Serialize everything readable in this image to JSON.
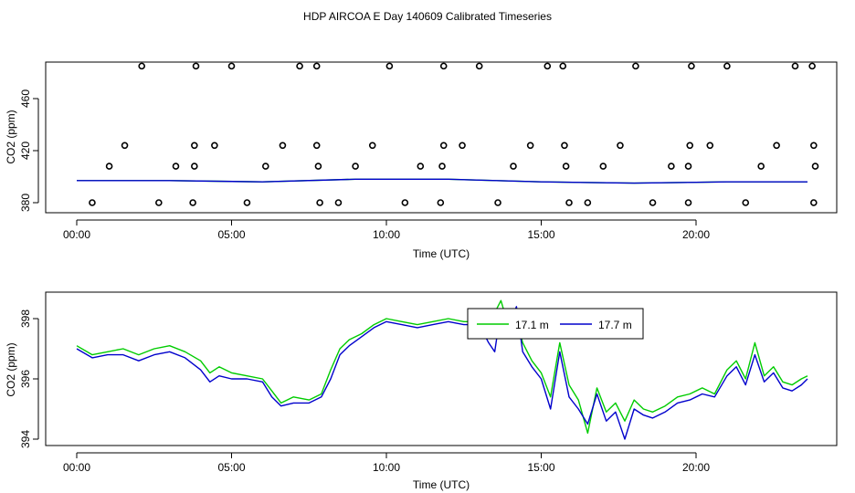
{
  "title": "HDP AIRCOA E  Day 140609  Calibrated Timeseries",
  "colors": {
    "green": "#00cc00",
    "blue": "#0000cc",
    "axis": "#000000"
  },
  "chart_data": [
    {
      "type": "scatter",
      "panel": "top",
      "xlabel": "Time (UTC)",
      "ylabel": "CO2 (ppm)",
      "xlim": [
        0,
        24
      ],
      "ylim": [
        374,
        483
      ],
      "x_ticks": [
        0,
        5,
        10,
        15,
        20
      ],
      "x_tick_labels": [
        "00:00",
        "05:00",
        "10:00",
        "15:00",
        "20:00"
      ],
      "y_ticks": [
        380,
        420,
        460
      ],
      "y_tick_labels": [
        "380",
        "420",
        "460"
      ],
      "legend": "none",
      "points": [
        {
          "x": 0.5,
          "y": 380
        },
        {
          "x": 2.65,
          "y": 380
        },
        {
          "x": 3.75,
          "y": 380
        },
        {
          "x": 5.5,
          "y": 380
        },
        {
          "x": 7.85,
          "y": 380
        },
        {
          "x": 8.45,
          "y": 380
        },
        {
          "x": 10.6,
          "y": 380
        },
        {
          "x": 11.75,
          "y": 380
        },
        {
          "x": 13.6,
          "y": 380
        },
        {
          "x": 15.9,
          "y": 380
        },
        {
          "x": 16.5,
          "y": 380
        },
        {
          "x": 18.6,
          "y": 380
        },
        {
          "x": 19.75,
          "y": 380
        },
        {
          "x": 21.6,
          "y": 380
        },
        {
          "x": 23.8,
          "y": 380
        },
        {
          "x": 1.05,
          "y": 408
        },
        {
          "x": 3.2,
          "y": 408
        },
        {
          "x": 3.8,
          "y": 408
        },
        {
          "x": 6.1,
          "y": 408
        },
        {
          "x": 7.8,
          "y": 408
        },
        {
          "x": 9.0,
          "y": 408
        },
        {
          "x": 11.1,
          "y": 408
        },
        {
          "x": 11.8,
          "y": 408
        },
        {
          "x": 14.1,
          "y": 408
        },
        {
          "x": 15.8,
          "y": 408
        },
        {
          "x": 17.0,
          "y": 408
        },
        {
          "x": 19.2,
          "y": 408
        },
        {
          "x": 19.75,
          "y": 408
        },
        {
          "x": 22.1,
          "y": 408
        },
        {
          "x": 23.85,
          "y": 408
        },
        {
          "x": 1.55,
          "y": 424
        },
        {
          "x": 3.8,
          "y": 424
        },
        {
          "x": 4.45,
          "y": 424
        },
        {
          "x": 6.65,
          "y": 424
        },
        {
          "x": 7.75,
          "y": 424
        },
        {
          "x": 9.55,
          "y": 424
        },
        {
          "x": 11.85,
          "y": 424
        },
        {
          "x": 12.45,
          "y": 424
        },
        {
          "x": 14.65,
          "y": 424
        },
        {
          "x": 15.75,
          "y": 424
        },
        {
          "x": 17.55,
          "y": 424
        },
        {
          "x": 19.8,
          "y": 424
        },
        {
          "x": 20.45,
          "y": 424
        },
        {
          "x": 22.6,
          "y": 424
        },
        {
          "x": 23.8,
          "y": 424
        },
        {
          "x": 2.1,
          "y": 485
        },
        {
          "x": 3.85,
          "y": 485
        },
        {
          "x": 5.0,
          "y": 485
        },
        {
          "x": 7.2,
          "y": 485
        },
        {
          "x": 7.75,
          "y": 485
        },
        {
          "x": 10.1,
          "y": 485
        },
        {
          "x": 11.85,
          "y": 485
        },
        {
          "x": 13.0,
          "y": 485
        },
        {
          "x": 15.2,
          "y": 485
        },
        {
          "x": 15.7,
          "y": 485
        },
        {
          "x": 18.05,
          "y": 485
        },
        {
          "x": 19.85,
          "y": 485
        },
        {
          "x": 21.0,
          "y": 485
        },
        {
          "x": 23.2,
          "y": 485
        },
        {
          "x": 23.75,
          "y": 485
        }
      ],
      "series": [
        {
          "name": "17.1 m",
          "color": "#00cc00",
          "x": [
            0,
            3,
            6,
            9,
            12,
            15,
            18,
            21,
            23.6
          ],
          "y": [
            397,
            397,
            396,
            398,
            398,
            396,
            395,
            396,
            396
          ]
        },
        {
          "name": "17.7 m",
          "color": "#0000cc",
          "x": [
            0,
            3,
            6,
            9,
            12,
            15,
            18,
            21,
            23.6
          ],
          "y": [
            397,
            397,
            396,
            398,
            398,
            396,
            395,
            396,
            396
          ]
        }
      ]
    },
    {
      "type": "line",
      "panel": "bottom",
      "xlabel": "Time (UTC)",
      "ylabel": "CO2 (ppm)",
      "xlim": [
        0,
        24
      ],
      "ylim": [
        393.8,
        398.7
      ],
      "x_ticks": [
        0,
        5,
        10,
        15,
        20
      ],
      "x_tick_labels": [
        "00:00",
        "05:00",
        "10:00",
        "15:00",
        "20:00"
      ],
      "y_ticks": [
        394,
        396,
        398
      ],
      "y_tick_labels": [
        "394",
        "396",
        "398"
      ],
      "legend": "top-center",
      "series": [
        {
          "name": "17.1 m",
          "color": "#00cc00",
          "x": [
            0,
            0.5,
            1.0,
            1.5,
            2.0,
            2.5,
            3.0,
            3.5,
            4.0,
            4.3,
            4.6,
            5.0,
            5.5,
            6.0,
            6.3,
            6.6,
            7.0,
            7.5,
            7.9,
            8.2,
            8.5,
            8.8,
            9.2,
            9.6,
            10.0,
            10.5,
            11.0,
            11.5,
            12.0,
            12.5,
            13.0,
            13.3,
            13.5,
            13.7,
            13.9,
            14.2,
            14.4,
            14.7,
            15.0,
            15.3,
            15.6,
            15.9,
            16.2,
            16.5,
            16.8,
            17.1,
            17.4,
            17.7,
            18.0,
            18.3,
            18.6,
            19.0,
            19.4,
            19.8,
            20.2,
            20.6,
            21.0,
            21.3,
            21.6,
            21.9,
            22.2,
            22.5,
            22.8,
            23.1,
            23.4,
            23.6
          ],
          "y": [
            397.1,
            396.8,
            396.9,
            397.0,
            396.8,
            397.0,
            397.1,
            396.9,
            396.6,
            396.2,
            396.4,
            396.2,
            396.1,
            396.0,
            395.6,
            395.2,
            395.4,
            395.3,
            395.5,
            396.3,
            397.0,
            397.3,
            397.5,
            397.8,
            398.0,
            397.9,
            397.8,
            397.9,
            398.0,
            397.9,
            397.9,
            397.4,
            398.2,
            398.6,
            397.9,
            398.0,
            397.2,
            396.6,
            396.2,
            395.4,
            397.2,
            395.8,
            395.3,
            394.2,
            395.7,
            394.9,
            395.2,
            394.6,
            395.3,
            395.0,
            394.9,
            395.1,
            395.4,
            395.5,
            395.7,
            395.5,
            396.3,
            396.6,
            396.0,
            397.2,
            396.1,
            396.4,
            395.9,
            395.8,
            396.0,
            396.1
          ]
        },
        {
          "name": "17.7 m",
          "color": "#0000cc",
          "x": [
            0,
            0.5,
            1.0,
            1.5,
            2.0,
            2.5,
            3.0,
            3.5,
            4.0,
            4.3,
            4.6,
            5.0,
            5.5,
            6.0,
            6.3,
            6.6,
            7.0,
            7.5,
            7.9,
            8.2,
            8.5,
            8.8,
            9.2,
            9.6,
            10.0,
            10.5,
            11.0,
            11.5,
            12.0,
            12.5,
            13.0,
            13.3,
            13.5,
            13.7,
            13.9,
            14.2,
            14.4,
            14.7,
            15.0,
            15.3,
            15.6,
            15.9,
            16.2,
            16.5,
            16.8,
            17.1,
            17.4,
            17.7,
            18.0,
            18.3,
            18.6,
            19.0,
            19.4,
            19.8,
            20.2,
            20.6,
            21.0,
            21.3,
            21.6,
            21.9,
            22.2,
            22.5,
            22.8,
            23.1,
            23.4,
            23.6
          ],
          "y": [
            397.0,
            396.7,
            396.8,
            396.8,
            396.6,
            396.8,
            396.9,
            396.7,
            396.3,
            395.9,
            396.1,
            396.0,
            396.0,
            395.9,
            395.4,
            395.1,
            395.2,
            395.2,
            395.4,
            396.0,
            396.8,
            397.1,
            397.4,
            397.7,
            397.9,
            397.8,
            397.7,
            397.8,
            397.9,
            397.8,
            397.8,
            397.2,
            396.9,
            398.3,
            397.6,
            398.4,
            396.9,
            396.4,
            396.0,
            395.0,
            396.9,
            395.4,
            395.0,
            394.5,
            395.5,
            394.6,
            394.9,
            394.0,
            395.0,
            394.8,
            394.7,
            394.9,
            395.2,
            395.3,
            395.5,
            395.4,
            396.1,
            396.4,
            395.8,
            396.8,
            395.9,
            396.2,
            395.7,
            395.6,
            395.8,
            396.0
          ]
        }
      ]
    }
  ]
}
